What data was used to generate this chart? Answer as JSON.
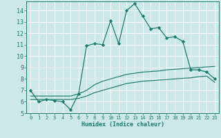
{
  "xlabel": "Humidex (Indice chaleur)",
  "xlim": [
    -0.5,
    23.5
  ],
  "ylim": [
    5,
    14.8
  ],
  "xticks": [
    0,
    1,
    2,
    3,
    4,
    5,
    6,
    7,
    8,
    9,
    10,
    11,
    12,
    13,
    14,
    15,
    16,
    17,
    18,
    19,
    20,
    21,
    22,
    23
  ],
  "yticks": [
    5,
    6,
    7,
    8,
    9,
    10,
    11,
    12,
    13,
    14
  ],
  "bg_color": "#cce8e8",
  "grid_color": "#ffffff",
  "line_color": "#1a7a6e",
  "line1_x": [
    0,
    1,
    2,
    3,
    4,
    5,
    6,
    7,
    8,
    9,
    10,
    11,
    12,
    13,
    14,
    15,
    16,
    17,
    18,
    19,
    20,
    21,
    22,
    23
  ],
  "line1_y": [
    7.0,
    6.0,
    6.2,
    6.1,
    6.0,
    5.3,
    6.7,
    10.9,
    11.1,
    11.0,
    13.1,
    11.1,
    14.0,
    14.6,
    13.5,
    12.4,
    12.5,
    11.6,
    11.7,
    11.3,
    8.8,
    8.8,
    8.6,
    8.0
  ],
  "line2_x": [
    0,
    5,
    6,
    7,
    8,
    9,
    10,
    11,
    12,
    13,
    14,
    15,
    16,
    17,
    18,
    19,
    20,
    21,
    22,
    23
  ],
  "line2_y": [
    6.5,
    6.5,
    6.7,
    7.0,
    7.5,
    7.8,
    8.0,
    8.2,
    8.4,
    8.5,
    8.6,
    8.65,
    8.7,
    8.8,
    8.85,
    8.9,
    8.95,
    9.0,
    9.05,
    9.1
  ],
  "line3_x": [
    0,
    5,
    6,
    7,
    8,
    9,
    10,
    11,
    12,
    13,
    14,
    15,
    16,
    17,
    18,
    19,
    20,
    21,
    22,
    23
  ],
  "line3_y": [
    6.2,
    6.2,
    6.3,
    6.5,
    6.8,
    7.0,
    7.2,
    7.4,
    7.6,
    7.7,
    7.8,
    7.85,
    7.9,
    7.95,
    8.0,
    8.05,
    8.1,
    8.2,
    8.25,
    7.7
  ]
}
